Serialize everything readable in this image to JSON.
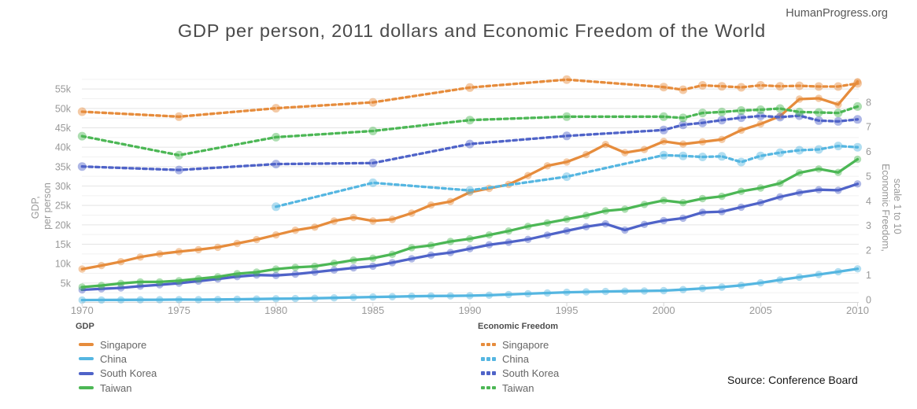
{
  "page": {
    "watermark": "HumanProgress.org",
    "title": "GDP per person, 2011 dollars and Economic Freedom of the World",
    "source_note": "Source: Conference Board"
  },
  "axes": {
    "x": {
      "ticks": [
        1970,
        1975,
        1980,
        1985,
        1990,
        1995,
        2000,
        2005,
        2010
      ]
    },
    "left": {
      "title_line1": "GDP,",
      "title_line2": "per person",
      "ticks": [
        {
          "label": "5k",
          "value": 5000
        },
        {
          "label": "10k",
          "value": 10000
        },
        {
          "label": "15k",
          "value": 15000
        },
        {
          "label": "20k",
          "value": 20000
        },
        {
          "label": "25k",
          "value": 25000
        },
        {
          "label": "30k",
          "value": 30000
        },
        {
          "label": "35k",
          "value": 35000
        },
        {
          "label": "40k",
          "value": 40000
        },
        {
          "label": "45k",
          "value": 45000
        },
        {
          "label": "50k",
          "value": 50000
        },
        {
          "label": "55k",
          "value": 55000
        }
      ]
    },
    "right": {
      "title_line1": "Economic Freedom,",
      "title_line2": "scale 1 to 10",
      "ticks": [
        {
          "label": "0",
          "value": 0
        },
        {
          "label": "1",
          "value": 1
        },
        {
          "label": "2",
          "value": 2
        },
        {
          "label": "3",
          "value": 3
        },
        {
          "label": "4",
          "value": 4
        },
        {
          "label": "5",
          "value": 5
        },
        {
          "label": "6",
          "value": 6
        },
        {
          "label": "7",
          "value": 7
        },
        {
          "label": "8",
          "value": 8
        }
      ]
    }
  },
  "legend": {
    "gdp": {
      "header": "GDP",
      "items": [
        {
          "label": "Singapore",
          "color": "#E68C3C"
        },
        {
          "label": "China",
          "color": "#55B6E1"
        },
        {
          "label": "South Korea",
          "color": "#4F63C8"
        },
        {
          "label": "Taiwan",
          "color": "#4CB755"
        }
      ]
    },
    "ef": {
      "header": "Economic Freedom",
      "items": [
        {
          "label": "Singapore",
          "color": "#E68C3C"
        },
        {
          "label": "China",
          "color": "#55B6E1"
        },
        {
          "label": "South Korea",
          "color": "#4F63C8"
        },
        {
          "label": "Taiwan",
          "color": "#4CB755"
        }
      ]
    }
  },
  "chart_data": {
    "type": "line",
    "title": "GDP per person, 2011 dollars and Economic Freedom of the World",
    "x_range": [
      1970,
      2010
    ],
    "left_axis": {
      "label": "GDP, per person",
      "units": "2011 US dollars",
      "lim": [
        0,
        60000
      ]
    },
    "right_axis": {
      "label": "Economic Freedom, scale 1 to 10",
      "lim": [
        0,
        9.3
      ]
    },
    "grid": "horizontal",
    "legend_position": "bottom",
    "series": [
      {
        "id": "gdp-singapore",
        "name": "Singapore",
        "group": "GDP",
        "axis": "left",
        "style": "solid",
        "color": "#E68C3C",
        "x": [
          1970,
          1971,
          1972,
          1973,
          1974,
          1975,
          1976,
          1977,
          1978,
          1979,
          1980,
          1981,
          1982,
          1983,
          1984,
          1985,
          1986,
          1987,
          1988,
          1989,
          1990,
          1991,
          1992,
          1993,
          1994,
          1995,
          1996,
          1997,
          1998,
          1999,
          2000,
          2001,
          2002,
          2003,
          2004,
          2005,
          2006,
          2007,
          2008,
          2009,
          2010
        ],
        "values": [
          8600,
          9500,
          10500,
          11700,
          12500,
          13100,
          13600,
          14200,
          15200,
          16200,
          17400,
          18600,
          19400,
          21000,
          21900,
          21000,
          21400,
          23000,
          25100,
          26000,
          28400,
          29400,
          30400,
          32700,
          35200,
          36200,
          38100,
          40700,
          38600,
          39400,
          41500,
          40800,
          41400,
          42000,
          44400,
          46000,
          48000,
          52400,
          52600,
          51000,
          56900
        ]
      },
      {
        "id": "gdp-china",
        "name": "China",
        "group": "GDP",
        "axis": "left",
        "style": "solid",
        "color": "#55B6E1",
        "x": [
          1970,
          1971,
          1972,
          1973,
          1974,
          1975,
          1976,
          1977,
          1978,
          1979,
          1980,
          1981,
          1982,
          1983,
          1984,
          1985,
          1986,
          1987,
          1988,
          1989,
          1990,
          1991,
          1992,
          1993,
          1994,
          1995,
          1996,
          1997,
          1998,
          1999,
          2000,
          2001,
          2002,
          2003,
          2004,
          2005,
          2006,
          2007,
          2008,
          2009,
          2010
        ],
        "values": [
          600,
          620,
          640,
          670,
          690,
          720,
          710,
          750,
          820,
          880,
          950,
          1000,
          1080,
          1170,
          1290,
          1400,
          1480,
          1580,
          1670,
          1690,
          1750,
          1870,
          2050,
          2240,
          2430,
          2620,
          2720,
          2820,
          2900,
          2960,
          3050,
          3300,
          3600,
          3950,
          4400,
          5050,
          5800,
          6500,
          7200,
          7900,
          8650
        ]
      },
      {
        "id": "gdp-south-korea",
        "name": "South Korea",
        "group": "GDP",
        "axis": "left",
        "style": "solid",
        "color": "#4F63C8",
        "x": [
          1970,
          1971,
          1972,
          1973,
          1974,
          1975,
          1976,
          1977,
          1978,
          1979,
          1980,
          1981,
          1982,
          1983,
          1984,
          1985,
          1986,
          1987,
          1988,
          1989,
          1990,
          1991,
          1992,
          1993,
          1994,
          1995,
          1996,
          1997,
          1998,
          1999,
          2000,
          2001,
          2002,
          2003,
          2004,
          2005,
          2006,
          2007,
          2008,
          2009,
          2010
        ],
        "values": [
          3250,
          3500,
          3750,
          4200,
          4550,
          4950,
          5500,
          6050,
          6650,
          7050,
          6950,
          7300,
          7800,
          8350,
          8900,
          9350,
          10250,
          11250,
          12200,
          12850,
          13850,
          14850,
          15500,
          16250,
          17350,
          18450,
          19500,
          20250,
          18650,
          20100,
          21100,
          21700,
          23200,
          23400,
          24550,
          25700,
          27200,
          28300,
          29050,
          28900,
          30550
        ]
      },
      {
        "id": "gdp-taiwan",
        "name": "Taiwan",
        "group": "GDP",
        "axis": "left",
        "style": "solid",
        "color": "#4CB755",
        "x": [
          1970,
          1971,
          1972,
          1973,
          1974,
          1975,
          1976,
          1977,
          1978,
          1979,
          1980,
          1981,
          1982,
          1983,
          1984,
          1985,
          1986,
          1987,
          1988,
          1989,
          1990,
          1991,
          1992,
          1993,
          1994,
          1995,
          1996,
          1997,
          1998,
          1999,
          2000,
          2001,
          2002,
          2003,
          2004,
          2005,
          2006,
          2007,
          2008,
          2009,
          2010
        ],
        "values": [
          3950,
          4350,
          4900,
          5300,
          5300,
          5600,
          6100,
          6600,
          7400,
          7800,
          8600,
          9050,
          9300,
          10100,
          10900,
          11400,
          12400,
          14100,
          14700,
          15700,
          16400,
          17400,
          18400,
          19600,
          20500,
          21450,
          22400,
          23600,
          24050,
          25250,
          26300,
          25700,
          26750,
          27350,
          28650,
          29500,
          30700,
          33400,
          34400,
          33500,
          36900
        ]
      },
      {
        "id": "ef-singapore",
        "name": "Singapore",
        "group": "Economic Freedom",
        "axis": "right",
        "style": "dashed",
        "color": "#E68C3C",
        "x": [
          1970,
          1975,
          1980,
          1985,
          1990,
          1995,
          2000,
          2001,
          2002,
          2003,
          2004,
          2005,
          2006,
          2007,
          2008,
          2009,
          2010
        ],
        "values": [
          7.61,
          7.41,
          7.75,
          7.99,
          8.59,
          8.91,
          8.61,
          8.5,
          8.68,
          8.64,
          8.6,
          8.68,
          8.64,
          8.66,
          8.63,
          8.63,
          8.76
        ]
      },
      {
        "id": "ef-china",
        "name": "China",
        "group": "Economic Freedom",
        "axis": "right",
        "style": "dashed",
        "color": "#55B6E1",
        "x": [
          1980,
          1985,
          1990,
          1995,
          2000,
          2001,
          2002,
          2003,
          2004,
          2005,
          2006,
          2007,
          2008,
          2009,
          2010
        ],
        "values": [
          3.76,
          4.73,
          4.42,
          4.98,
          5.85,
          5.82,
          5.78,
          5.8,
          5.57,
          5.82,
          5.95,
          6.05,
          6.08,
          6.22,
          6.17
        ]
      },
      {
        "id": "ef-south-korea",
        "name": "South Korea",
        "group": "Economic Freedom",
        "axis": "right",
        "style": "dashed",
        "color": "#4F63C8",
        "x": [
          1970,
          1975,
          1980,
          1985,
          1990,
          1995,
          2000,
          2001,
          2002,
          2003,
          2004,
          2005,
          2006,
          2007,
          2008,
          2009,
          2010
        ],
        "values": [
          5.39,
          5.25,
          5.49,
          5.53,
          6.3,
          6.63,
          6.87,
          7.08,
          7.16,
          7.27,
          7.37,
          7.44,
          7.39,
          7.45,
          7.25,
          7.22,
          7.3
        ]
      },
      {
        "id": "ef-taiwan",
        "name": "Taiwan",
        "group": "Economic Freedom",
        "axis": "right",
        "style": "dashed",
        "color": "#4CB755",
        "x": [
          1970,
          1975,
          1980,
          1985,
          1990,
          1995,
          2000,
          2001,
          2002,
          2003,
          2004,
          2005,
          2006,
          2007,
          2008,
          2009,
          2010
        ],
        "values": [
          6.62,
          5.85,
          6.58,
          6.83,
          7.27,
          7.41,
          7.41,
          7.36,
          7.56,
          7.6,
          7.66,
          7.69,
          7.74,
          7.6,
          7.58,
          7.56,
          7.82
        ]
      }
    ]
  }
}
